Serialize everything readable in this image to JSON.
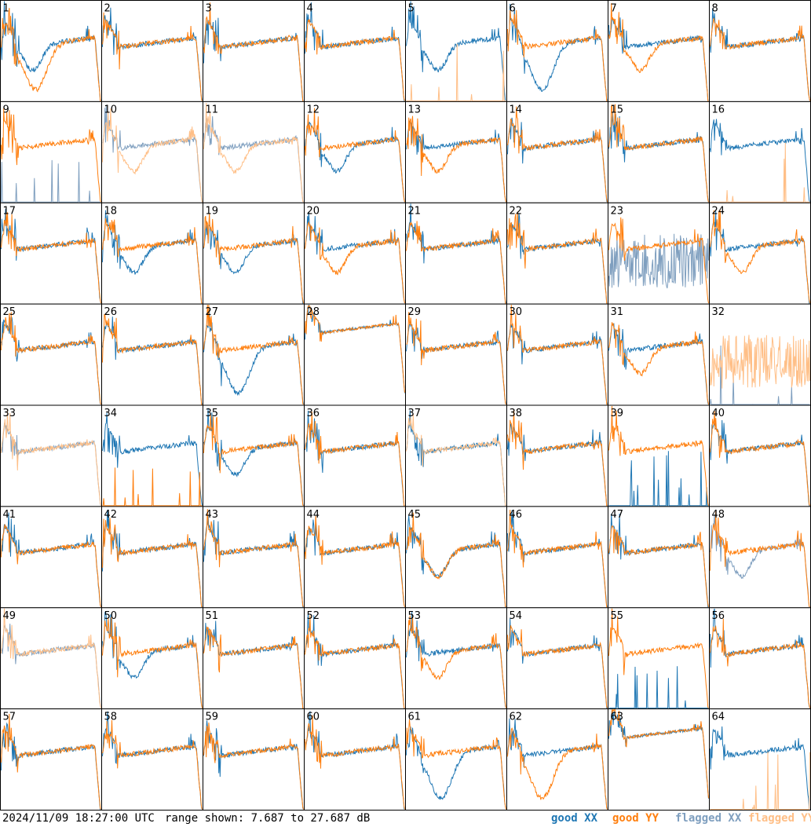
{
  "footer": {
    "timestamp": "2024/11/09 18:27:00 UTC",
    "range_text": "range shown: 7.687 to 27.687 dB",
    "legend": [
      "good XX",
      "good YY",
      "flagged XX",
      "flagged YY"
    ]
  },
  "colors": {
    "good_xx": "#1f77b4",
    "good_yy": "#ff7f0e",
    "flagged_xx": "#7f9fbf",
    "flagged_yy": "#ffbf87",
    "border": "#000000"
  },
  "chart_data": {
    "type": "line",
    "ylim": [
      7.687,
      27.687
    ],
    "y_unit": "dB",
    "grid": {
      "rows": 8,
      "cols": 8
    },
    "panels": [
      {
        "label": "1",
        "xx": "good",
        "yy": "good",
        "xx_shape": "dip",
        "yy_shape": "crash"
      },
      {
        "label": "2",
        "xx": "good",
        "yy": "good",
        "xx_shape": "flat",
        "yy_shape": "flat"
      },
      {
        "label": "3",
        "xx": "good",
        "yy": "good",
        "xx_shape": "flat",
        "yy_shape": "flat"
      },
      {
        "label": "4",
        "xx": "good",
        "yy": "good",
        "xx_shape": "flat",
        "yy_shape": "flat"
      },
      {
        "label": "5",
        "xx": "good",
        "yy": "flagged",
        "xx_shape": "dip",
        "yy_shape": "dead"
      },
      {
        "label": "6",
        "xx": "good",
        "yy": "good",
        "xx_shape": "crash",
        "yy_shape": "flat"
      },
      {
        "label": "7",
        "xx": "good",
        "yy": "good",
        "xx_shape": "flat",
        "yy_shape": "dip"
      },
      {
        "label": "8",
        "xx": "good",
        "yy": "good",
        "xx_shape": "flat",
        "yy_shape": "flat"
      },
      {
        "label": "9",
        "xx": "flagged",
        "yy": "good",
        "xx_shape": "dead",
        "yy_shape": "flat"
      },
      {
        "label": "10",
        "xx": "flagged",
        "yy": "flagged",
        "xx_shape": "flat",
        "yy_shape": "dip"
      },
      {
        "label": "11",
        "xx": "flagged",
        "yy": "flagged",
        "xx_shape": "flat",
        "yy_shape": "dip"
      },
      {
        "label": "12",
        "xx": "good",
        "yy": "good",
        "xx_shape": "dip",
        "yy_shape": "flat"
      },
      {
        "label": "13",
        "xx": "good",
        "yy": "good",
        "xx_shape": "flat",
        "yy_shape": "dip"
      },
      {
        "label": "14",
        "xx": "good",
        "yy": "good",
        "xx_shape": "flat",
        "yy_shape": "flat"
      },
      {
        "label": "15",
        "xx": "good",
        "yy": "good",
        "xx_shape": "flat",
        "yy_shape": "flat"
      },
      {
        "label": "16",
        "xx": "good",
        "yy": "flagged",
        "xx_shape": "flat",
        "yy_shape": "dead"
      },
      {
        "label": "17",
        "xx": "good",
        "yy": "good",
        "xx_shape": "flat",
        "yy_shape": "flat"
      },
      {
        "label": "18",
        "xx": "good",
        "yy": "good",
        "xx_shape": "dip",
        "yy_shape": "flat"
      },
      {
        "label": "19",
        "xx": "good",
        "yy": "good",
        "xx_shape": "dip",
        "yy_shape": "flat"
      },
      {
        "label": "20",
        "xx": "good",
        "yy": "good",
        "xx_shape": "flat",
        "yy_shape": "dip"
      },
      {
        "label": "21",
        "xx": "good",
        "yy": "good",
        "xx_shape": "flat",
        "yy_shape": "flat"
      },
      {
        "label": "22",
        "xx": "good",
        "yy": "good",
        "xx_shape": "flat",
        "yy_shape": "flat"
      },
      {
        "label": "23",
        "xx": "flagged",
        "yy": "good",
        "xx_shape": "noisy",
        "yy_shape": "flat"
      },
      {
        "label": "24",
        "xx": "good",
        "yy": "good",
        "xx_shape": "flat",
        "yy_shape": "dip"
      },
      {
        "label": "25",
        "xx": "good",
        "yy": "good",
        "xx_shape": "flat",
        "yy_shape": "flat"
      },
      {
        "label": "26",
        "xx": "good",
        "yy": "good",
        "xx_shape": "flat",
        "yy_shape": "flat"
      },
      {
        "label": "27",
        "xx": "good",
        "yy": "good",
        "xx_shape": "crash",
        "yy_shape": "flat"
      },
      {
        "label": "28",
        "xx": "good",
        "yy": "good",
        "xx_shape": "high",
        "yy_shape": "high"
      },
      {
        "label": "29",
        "xx": "good",
        "yy": "good",
        "xx_shape": "flat",
        "yy_shape": "flat"
      },
      {
        "label": "30",
        "xx": "good",
        "yy": "good",
        "xx_shape": "flat",
        "yy_shape": "flat"
      },
      {
        "label": "31",
        "xx": "good",
        "yy": "good",
        "xx_shape": "flat",
        "yy_shape": "dip"
      },
      {
        "label": "32",
        "xx": "flagged",
        "yy": "flagged",
        "xx_shape": "dead",
        "yy_shape": "noisy"
      },
      {
        "label": "33",
        "xx": "flagged",
        "yy": "flagged",
        "xx_shape": "flat",
        "yy_shape": "flat"
      },
      {
        "label": "34",
        "xx": "good",
        "yy": "good",
        "xx_shape": "flat",
        "yy_shape": "dead"
      },
      {
        "label": "35",
        "xx": "good",
        "yy": "good",
        "xx_shape": "dip",
        "yy_shape": "flat"
      },
      {
        "label": "36",
        "xx": "good",
        "yy": "good",
        "xx_shape": "flat",
        "yy_shape": "flat"
      },
      {
        "label": "37",
        "xx": "good",
        "yy": "flagged",
        "xx_shape": "flat",
        "yy_shape": "flat"
      },
      {
        "label": "38",
        "xx": "good",
        "yy": "good",
        "xx_shape": "flat",
        "yy_shape": "flat"
      },
      {
        "label": "39",
        "xx": "good",
        "yy": "good",
        "xx_shape": "dead",
        "yy_shape": "flat"
      },
      {
        "label": "40",
        "xx": "good",
        "yy": "good",
        "xx_shape": "flat",
        "yy_shape": "flat"
      },
      {
        "label": "41",
        "xx": "good",
        "yy": "good",
        "xx_shape": "flat",
        "yy_shape": "flat"
      },
      {
        "label": "42",
        "xx": "good",
        "yy": "good",
        "xx_shape": "flat",
        "yy_shape": "flat"
      },
      {
        "label": "43",
        "xx": "good",
        "yy": "good",
        "xx_shape": "flat",
        "yy_shape": "flat"
      },
      {
        "label": "44",
        "xx": "good",
        "yy": "good",
        "xx_shape": "flat",
        "yy_shape": "flat"
      },
      {
        "label": "45",
        "xx": "good",
        "yy": "good",
        "xx_shape": "dip",
        "yy_shape": "dip"
      },
      {
        "label": "46",
        "xx": "good",
        "yy": "good",
        "xx_shape": "flat",
        "yy_shape": "flat"
      },
      {
        "label": "47",
        "xx": "good",
        "yy": "good",
        "xx_shape": "flat",
        "yy_shape": "flat"
      },
      {
        "label": "48",
        "xx": "flagged",
        "yy": "good",
        "xx_shape": "dip",
        "yy_shape": "flat"
      },
      {
        "label": "49",
        "xx": "flagged",
        "yy": "flagged",
        "xx_shape": "flat",
        "yy_shape": "flat"
      },
      {
        "label": "50",
        "xx": "good",
        "yy": "good",
        "xx_shape": "dip",
        "yy_shape": "flat"
      },
      {
        "label": "51",
        "xx": "good",
        "yy": "good",
        "xx_shape": "flat",
        "yy_shape": "flat"
      },
      {
        "label": "52",
        "xx": "good",
        "yy": "good",
        "xx_shape": "flat",
        "yy_shape": "flat"
      },
      {
        "label": "53",
        "xx": "good",
        "yy": "good",
        "xx_shape": "flat",
        "yy_shape": "dip"
      },
      {
        "label": "54",
        "xx": "good",
        "yy": "good",
        "xx_shape": "flat",
        "yy_shape": "flat"
      },
      {
        "label": "55",
        "xx": "good",
        "yy": "good",
        "xx_shape": "dead",
        "yy_shape": "flat"
      },
      {
        "label": "56",
        "xx": "good",
        "yy": "good",
        "xx_shape": "flat",
        "yy_shape": "flat"
      },
      {
        "label": "57",
        "xx": "good",
        "yy": "good",
        "xx_shape": "flat",
        "yy_shape": "flat"
      },
      {
        "label": "58",
        "xx": "good",
        "yy": "good",
        "xx_shape": "flat",
        "yy_shape": "flat"
      },
      {
        "label": "59",
        "xx": "good",
        "yy": "good",
        "xx_shape": "flat",
        "yy_shape": "flat"
      },
      {
        "label": "60",
        "xx": "good",
        "yy": "good",
        "xx_shape": "flat",
        "yy_shape": "flat"
      },
      {
        "label": "61",
        "xx": "good",
        "yy": "good",
        "xx_shape": "crash",
        "yy_shape": "flat"
      },
      {
        "label": "62",
        "xx": "good",
        "yy": "good",
        "xx_shape": "flat",
        "yy_shape": "crash"
      },
      {
        "label": "63",
        "xx": "good",
        "yy": "good",
        "xx_shape": "high",
        "yy_shape": "high"
      },
      {
        "label": "64",
        "xx": "good",
        "yy": "flagged",
        "xx_shape": "flat",
        "yy_shape": "dead"
      }
    ]
  }
}
